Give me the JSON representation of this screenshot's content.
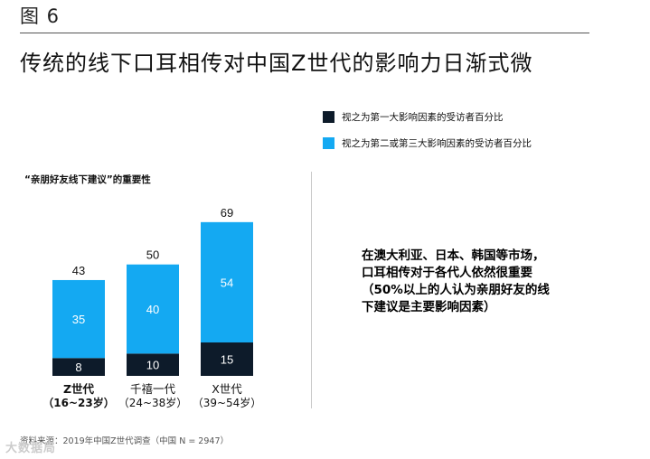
{
  "figure_label": "图 6",
  "headline": "传统的线下口耳相传对中国Z世代的影响力日渐式微",
  "legend": [
    {
      "label": "视之为第一大影响因素的受访者百分比",
      "color": "#0d1b2a"
    },
    {
      "label": "视之为第二或第三大影响因素的受访者百分比",
      "color": "#14a9f2"
    }
  ],
  "chart_title": "“亲朋好友线下建议”的重要性",
  "callout": "在澳大利亚、日本、韩国等市场，口耳相传对于各代人依然很重要（50%以上的人认为亲朋好友的线下建议是主要影响因素）",
  "source": "资料来源：2019年中国Z世代调查（中国 N = 2947）",
  "watermark": "大数据局",
  "chart_data": {
    "type": "bar",
    "stacked": true,
    "categories": [
      {
        "name": "Z世代",
        "range": "（16~23岁）"
      },
      {
        "name": "千禧一代",
        "range": "（24~38岁）"
      },
      {
        "name": "X世代",
        "range": "（39~54岁）"
      }
    ],
    "series": [
      {
        "name": "视之为第一大影响因素的受访者百分比",
        "values": [
          8,
          10,
          15
        ],
        "color": "#0d1b2a"
      },
      {
        "name": "视之为第二或第三大影响因素的受访者百分比",
        "values": [
          35,
          40,
          54
        ],
        "color": "#14a9f2"
      }
    ],
    "totals": [
      43,
      50,
      69
    ]
  }
}
